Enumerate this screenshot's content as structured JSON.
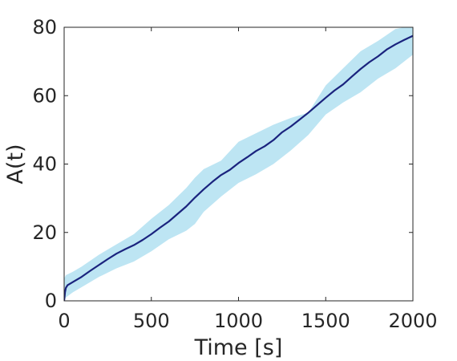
{
  "chart_data": {
    "type": "line",
    "title": "",
    "xlabel": "Time [s]",
    "ylabel": "A(t)",
    "xlim": [
      0,
      2000
    ],
    "ylim": [
      0,
      80
    ],
    "xticks": [
      0,
      500,
      1000,
      1500,
      2000
    ],
    "yticks": [
      0,
      20,
      40,
      60,
      80
    ],
    "xtick_labels": [
      "0",
      "500",
      "1000",
      "1500",
      "2000"
    ],
    "ytick_labels": [
      "0",
      "20",
      "40",
      "60",
      "80"
    ],
    "grid": false,
    "legend": "none",
    "colors": {
      "mean_line": "#1a237e",
      "band_fill": "#bde5f3",
      "axis": "#262626"
    },
    "series": [
      {
        "role": "mean",
        "x": [
          0,
          5,
          10,
          20,
          50,
          100,
          150,
          200,
          250,
          300,
          350,
          400,
          450,
          500,
          550,
          600,
          650,
          700,
          750,
          800,
          850,
          900,
          950,
          1000,
          1050,
          1100,
          1150,
          1200,
          1250,
          1300,
          1350,
          1400,
          1450,
          1500,
          1550,
          1600,
          1650,
          1700,
          1750,
          1800,
          1850,
          1900,
          1950,
          2000
        ],
        "y": [
          0,
          2.5,
          3.8,
          4.6,
          5.5,
          7.0,
          8.8,
          10.5,
          12.2,
          13.8,
          15.1,
          16.3,
          17.8,
          19.5,
          21.4,
          23.2,
          25.4,
          27.6,
          30.2,
          32.6,
          34.8,
          36.8,
          38.3,
          40.3,
          42.0,
          43.8,
          45.2,
          47.0,
          49.3,
          51.0,
          53.0,
          55.0,
          57.2,
          59.4,
          61.5,
          63.3,
          65.6,
          67.8,
          69.8,
          71.5,
          73.5,
          75.0,
          76.3,
          77.5
        ]
      },
      {
        "role": "band",
        "x": [
          0,
          5,
          10,
          50,
          100,
          200,
          300,
          400,
          500,
          600,
          700,
          750,
          800,
          900,
          1000,
          1100,
          1200,
          1300,
          1400,
          1500,
          1600,
          1700,
          1800,
          1900,
          1950,
          2000
        ],
        "upper": [
          6.5,
          7.0,
          7.5,
          8.5,
          10.0,
          13.5,
          16.5,
          19.5,
          24.0,
          28.0,
          33.0,
          36.0,
          38.5,
          41.0,
          46.5,
          49.0,
          51.5,
          53.5,
          55.0,
          63.0,
          68.0,
          73.0,
          76.0,
          79.5,
          80.0,
          80.0
        ],
        "lower": [
          0,
          0.5,
          1.0,
          2.5,
          4.0,
          7.0,
          9.5,
          11.5,
          14.5,
          18.0,
          20.5,
          22.5,
          26.0,
          30.5,
          34.5,
          37.0,
          40.0,
          44.0,
          48.5,
          54.5,
          58.0,
          61.0,
          65.0,
          68.0,
          70.0,
          72.0
        ]
      }
    ]
  }
}
